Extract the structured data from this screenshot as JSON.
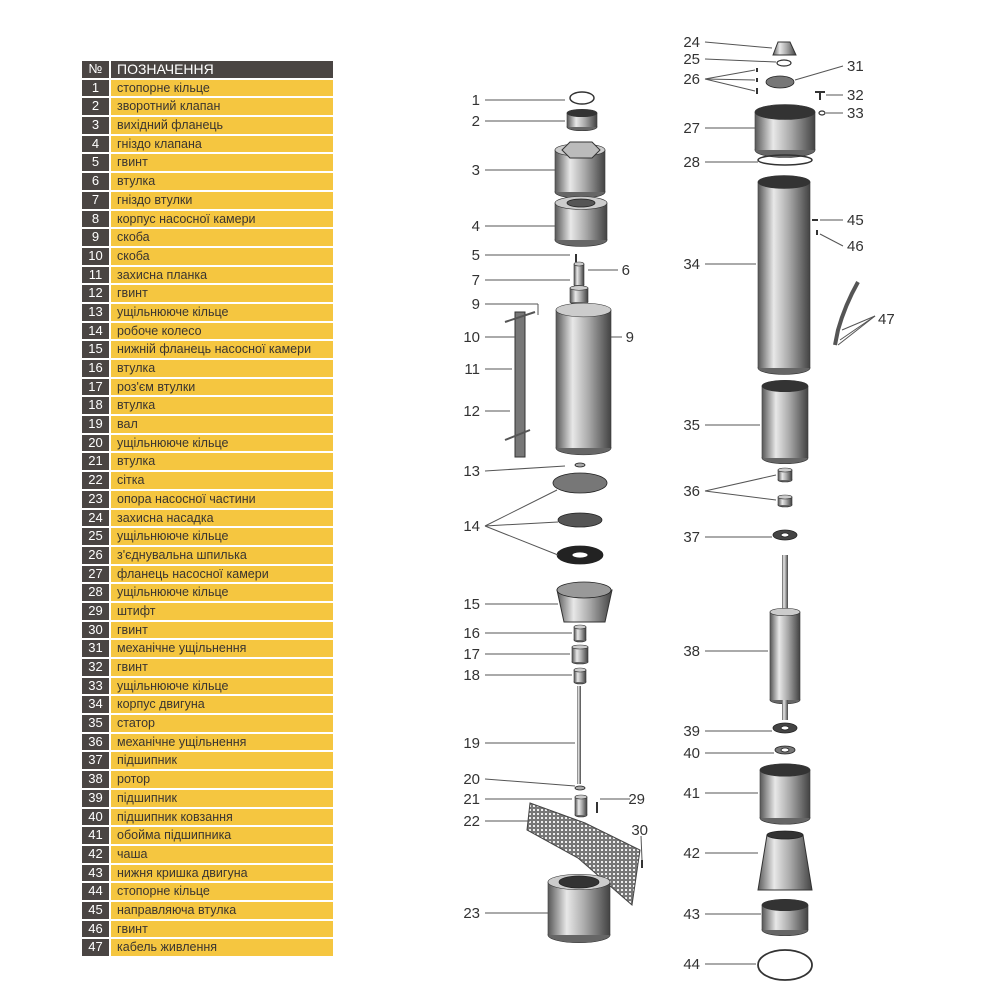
{
  "legend": {
    "header": {
      "num": "№",
      "label": "ПОЗНАЧЕННЯ"
    },
    "colors": {
      "header_bg": "#4a4543",
      "row_bg": "#f5c640"
    },
    "rows": [
      {
        "num": "1",
        "label": "стопорне кільце"
      },
      {
        "num": "2",
        "label": "зворотний клапан"
      },
      {
        "num": "3",
        "label": "вихідний фланець"
      },
      {
        "num": "4",
        "label": "гніздо клапана"
      },
      {
        "num": "5",
        "label": "гвинт"
      },
      {
        "num": "6",
        "label": "втулка"
      },
      {
        "num": "7",
        "label": "гніздо втулки"
      },
      {
        "num": "8",
        "label": "корпус насосної камери"
      },
      {
        "num": "9",
        "label": "скоба"
      },
      {
        "num": "10",
        "label": "скоба"
      },
      {
        "num": "11",
        "label": "захисна планка"
      },
      {
        "num": "12",
        "label": "гвинт"
      },
      {
        "num": "13",
        "label": "ущільнююче кільце"
      },
      {
        "num": "14",
        "label": "робоче колесо"
      },
      {
        "num": "15",
        "label": "нижній фланець насосної камери"
      },
      {
        "num": "16",
        "label": "втулка"
      },
      {
        "num": "17",
        "label": "роз'єм втулки"
      },
      {
        "num": "18",
        "label": "втулка"
      },
      {
        "num": "19",
        "label": "вал"
      },
      {
        "num": "20",
        "label": "ущільнююче кільце"
      },
      {
        "num": "21",
        "label": "втулка"
      },
      {
        "num": "22",
        "label": "сітка"
      },
      {
        "num": "23",
        "label": "опора насосної частини"
      },
      {
        "num": "24",
        "label": "захисна насадка"
      },
      {
        "num": "25",
        "label": "ущільнююче кільце"
      },
      {
        "num": "26",
        "label": "з'єднувальна шпилька"
      },
      {
        "num": "27",
        "label": "фланець насосної камери"
      },
      {
        "num": "28",
        "label": "ущільнююче кільце"
      },
      {
        "num": "29",
        "label": "штифт"
      },
      {
        "num": "30",
        "label": "гвинт"
      },
      {
        "num": "31",
        "label": "механічне ущільнення"
      },
      {
        "num": "32",
        "label": "гвинт"
      },
      {
        "num": "33",
        "label": "ущільнююче кільце"
      },
      {
        "num": "34",
        "label": "корпус двигуна"
      },
      {
        "num": "35",
        "label": "статор"
      },
      {
        "num": "36",
        "label": "механічне ущільнення"
      },
      {
        "num": "37",
        "label": "підшипник"
      },
      {
        "num": "38",
        "label": "ротор"
      },
      {
        "num": "39",
        "label": "підшипник"
      },
      {
        "num": "40",
        "label": "підшипник ковзання"
      },
      {
        "num": "41",
        "label": "обойма підшипника"
      },
      {
        "num": "42",
        "label": "чаша"
      },
      {
        "num": "43",
        "label": "нижня кришка двигуна"
      },
      {
        "num": "44",
        "label": "стопорне кільце"
      },
      {
        "num": "45",
        "label": "направляюча втулка"
      },
      {
        "num": "46",
        "label": "гвинт"
      },
      {
        "num": "47",
        "label": "кабель живлення"
      }
    ]
  },
  "diagram": {
    "callouts": [
      "1",
      "2",
      "3",
      "4",
      "5",
      "6",
      "7",
      "9",
      "10",
      "11",
      "12",
      "9",
      "13",
      "14",
      "15",
      "16",
      "17",
      "18",
      "19",
      "20",
      "21",
      "29",
      "22",
      "30",
      "23",
      "24",
      "25",
      "26",
      "31",
      "32",
      "33",
      "27",
      "28",
      "34",
      "45",
      "46",
      "47",
      "35",
      "36",
      "37",
      "38",
      "39",
      "40",
      "41",
      "42",
      "43",
      "44"
    ]
  }
}
